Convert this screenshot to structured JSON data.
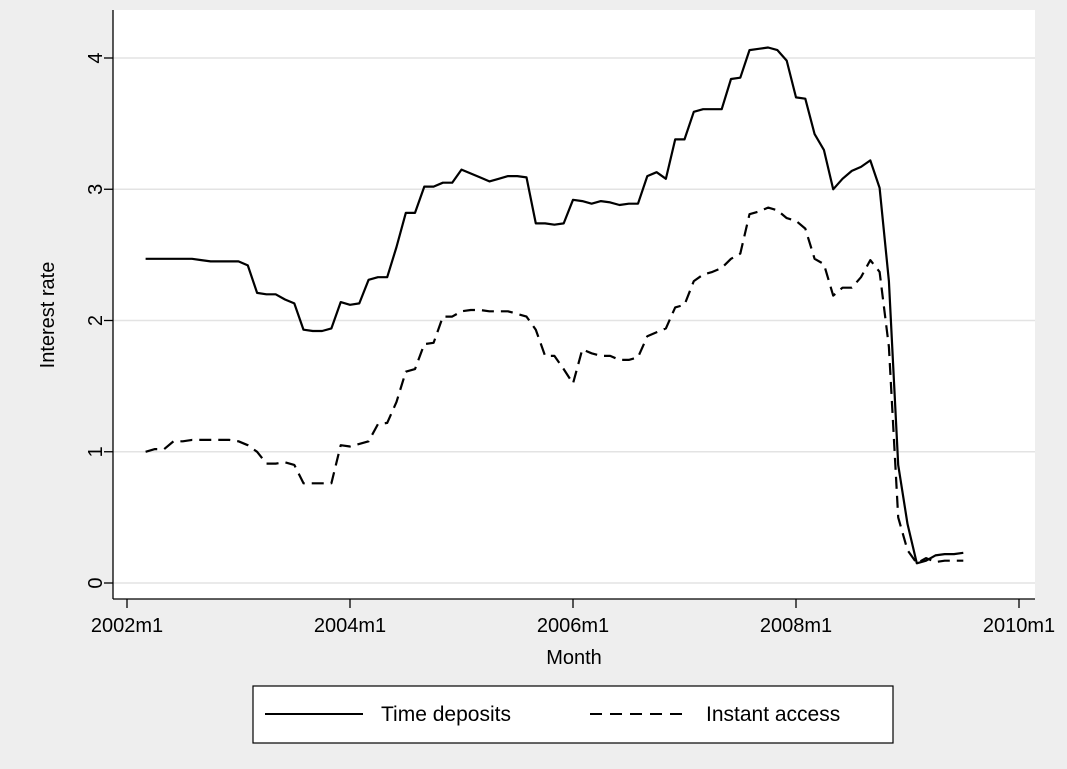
{
  "chart_data": {
    "type": "line",
    "title": "",
    "xlabel": "Month",
    "ylabel": "Interest rate",
    "x_tick_labels": [
      "2002m1",
      "2004m1",
      "2006m1",
      "2008m1",
      "2010m1"
    ],
    "x_tick_values": [
      "2002-01",
      "2004-01",
      "2006-01",
      "2008-01",
      "2010-01"
    ],
    "y_tick_labels": [
      "0",
      "1",
      "2",
      "3",
      "4"
    ],
    "y_tick_values": [
      0,
      1,
      2,
      3,
      4
    ],
    "xlim": [
      "2002-01",
      "2010-01"
    ],
    "ylim": [
      0,
      4
    ],
    "grid": "horizontal",
    "legend_position": "bottom",
    "series": [
      {
        "name": "Time deposits",
        "style": "solid",
        "color": "#000000",
        "points": [
          [
            "2002-03",
            2.47
          ],
          [
            "2002-04",
            2.47
          ],
          [
            "2002-05",
            2.47
          ],
          [
            "2002-06",
            2.47
          ],
          [
            "2002-07",
            2.47
          ],
          [
            "2002-08",
            2.47
          ],
          [
            "2002-09",
            2.46
          ],
          [
            "2002-10",
            2.45
          ],
          [
            "2002-11",
            2.45
          ],
          [
            "2002-12",
            2.45
          ],
          [
            "2003-01",
            2.45
          ],
          [
            "2003-02",
            2.42
          ],
          [
            "2003-03",
            2.21
          ],
          [
            "2003-04",
            2.2
          ],
          [
            "2003-05",
            2.2
          ],
          [
            "2003-06",
            2.16
          ],
          [
            "2003-07",
            2.13
          ],
          [
            "2003-08",
            1.93
          ],
          [
            "2003-09",
            1.92
          ],
          [
            "2003-10",
            1.92
          ],
          [
            "2003-11",
            1.94
          ],
          [
            "2003-12",
            2.14
          ],
          [
            "2004-01",
            2.12
          ],
          [
            "2004-02",
            2.13
          ],
          [
            "2004-03",
            2.31
          ],
          [
            "2004-04",
            2.33
          ],
          [
            "2004-05",
            2.33
          ],
          [
            "2004-06",
            2.56
          ],
          [
            "2004-07",
            2.82
          ],
          [
            "2004-08",
            2.82
          ],
          [
            "2004-09",
            3.02
          ],
          [
            "2004-10",
            3.02
          ],
          [
            "2004-11",
            3.05
          ],
          [
            "2004-12",
            3.05
          ],
          [
            "2005-01",
            3.15
          ],
          [
            "2005-02",
            3.12
          ],
          [
            "2005-03",
            3.09
          ],
          [
            "2005-04",
            3.06
          ],
          [
            "2005-05",
            3.08
          ],
          [
            "2005-06",
            3.1
          ],
          [
            "2005-07",
            3.1
          ],
          [
            "2005-08",
            3.09
          ],
          [
            "2005-09",
            2.74
          ],
          [
            "2005-10",
            2.74
          ],
          [
            "2005-11",
            2.73
          ],
          [
            "2005-12",
            2.74
          ],
          [
            "2006-01",
            2.92
          ],
          [
            "2006-02",
            2.91
          ],
          [
            "2006-03",
            2.89
          ],
          [
            "2006-04",
            2.91
          ],
          [
            "2006-05",
            2.9
          ],
          [
            "2006-06",
            2.88
          ],
          [
            "2006-07",
            2.89
          ],
          [
            "2006-08",
            2.89
          ],
          [
            "2006-09",
            3.1
          ],
          [
            "2006-10",
            3.13
          ],
          [
            "2006-11",
            3.08
          ],
          [
            "2006-12",
            3.38
          ],
          [
            "2007-01",
            3.38
          ],
          [
            "2007-02",
            3.59
          ],
          [
            "2007-03",
            3.61
          ],
          [
            "2007-04",
            3.61
          ],
          [
            "2007-05",
            3.61
          ],
          [
            "2007-06",
            3.84
          ],
          [
            "2007-07",
            3.85
          ],
          [
            "2007-08",
            4.06
          ],
          [
            "2007-09",
            4.07
          ],
          [
            "2007-10",
            4.08
          ],
          [
            "2007-11",
            4.06
          ],
          [
            "2007-12",
            3.98
          ],
          [
            "2008-01",
            3.7
          ],
          [
            "2008-02",
            3.69
          ],
          [
            "2008-03",
            3.42
          ],
          [
            "2008-04",
            3.3
          ],
          [
            "2008-05",
            3.0
          ],
          [
            "2008-06",
            3.08
          ],
          [
            "2008-07",
            3.14
          ],
          [
            "2008-08",
            3.17
          ],
          [
            "2008-09",
            3.22
          ],
          [
            "2008-10",
            3.01
          ],
          [
            "2008-11",
            2.3
          ],
          [
            "2008-12",
            0.9
          ],
          [
            "2009-01",
            0.45
          ],
          [
            "2009-02",
            0.15
          ],
          [
            "2009-03",
            0.17
          ],
          [
            "2009-04",
            0.21
          ],
          [
            "2009-05",
            0.22
          ],
          [
            "2009-06",
            0.22
          ],
          [
            "2009-07",
            0.23
          ]
        ]
      },
      {
        "name": "Instant access",
        "style": "dashed",
        "color": "#000000",
        "points": [
          [
            "2002-03",
            1.0
          ],
          [
            "2002-04",
            1.02
          ],
          [
            "2002-05",
            1.02
          ],
          [
            "2002-06",
            1.08
          ],
          [
            "2002-07",
            1.08
          ],
          [
            "2002-08",
            1.09
          ],
          [
            "2002-09",
            1.09
          ],
          [
            "2002-10",
            1.09
          ],
          [
            "2002-11",
            1.09
          ],
          [
            "2002-12",
            1.09
          ],
          [
            "2003-01",
            1.08
          ],
          [
            "2003-02",
            1.05
          ],
          [
            "2003-03",
            1.0
          ],
          [
            "2003-04",
            0.91
          ],
          [
            "2003-05",
            0.91
          ],
          [
            "2003-06",
            0.92
          ],
          [
            "2003-07",
            0.9
          ],
          [
            "2003-08",
            0.76
          ],
          [
            "2003-09",
            0.76
          ],
          [
            "2003-10",
            0.76
          ],
          [
            "2003-11",
            0.76
          ],
          [
            "2003-12",
            1.05
          ],
          [
            "2004-01",
            1.04
          ],
          [
            "2004-02",
            1.06
          ],
          [
            "2004-03",
            1.08
          ],
          [
            "2004-04",
            1.21
          ],
          [
            "2004-05",
            1.22
          ],
          [
            "2004-06",
            1.38
          ],
          [
            "2004-07",
            1.61
          ],
          [
            "2004-08",
            1.63
          ],
          [
            "2004-09",
            1.82
          ],
          [
            "2004-10",
            1.83
          ],
          [
            "2004-11",
            2.03
          ],
          [
            "2004-12",
            2.03
          ],
          [
            "2005-01",
            2.07
          ],
          [
            "2005-02",
            2.08
          ],
          [
            "2005-03",
            2.08
          ],
          [
            "2005-04",
            2.07
          ],
          [
            "2005-05",
            2.07
          ],
          [
            "2005-06",
            2.07
          ],
          [
            "2005-07",
            2.05
          ],
          [
            "2005-08",
            2.03
          ],
          [
            "2005-09",
            1.93
          ],
          [
            "2005-10",
            1.73
          ],
          [
            "2005-11",
            1.73
          ],
          [
            "2005-12",
            1.63
          ],
          [
            "2006-01",
            1.52
          ],
          [
            "2006-02",
            1.78
          ],
          [
            "2006-03",
            1.75
          ],
          [
            "2006-04",
            1.73
          ],
          [
            "2006-05",
            1.73
          ],
          [
            "2006-06",
            1.7
          ],
          [
            "2006-07",
            1.7
          ],
          [
            "2006-08",
            1.72
          ],
          [
            "2006-09",
            1.88
          ],
          [
            "2006-10",
            1.91
          ],
          [
            "2006-11",
            1.94
          ],
          [
            "2006-12",
            2.1
          ],
          [
            "2007-01",
            2.12
          ],
          [
            "2007-02",
            2.3
          ],
          [
            "2007-03",
            2.35
          ],
          [
            "2007-04",
            2.37
          ],
          [
            "2007-05",
            2.4
          ],
          [
            "2007-06",
            2.47
          ],
          [
            "2007-07",
            2.51
          ],
          [
            "2007-08",
            2.81
          ],
          [
            "2007-09",
            2.83
          ],
          [
            "2007-10",
            2.86
          ],
          [
            "2007-11",
            2.84
          ],
          [
            "2007-12",
            2.78
          ],
          [
            "2008-01",
            2.76
          ],
          [
            "2008-02",
            2.7
          ],
          [
            "2008-03",
            2.47
          ],
          [
            "2008-04",
            2.43
          ],
          [
            "2008-05",
            2.19
          ],
          [
            "2008-06",
            2.25
          ],
          [
            "2008-07",
            2.25
          ],
          [
            "2008-08",
            2.33
          ],
          [
            "2008-09",
            2.46
          ],
          [
            "2008-10",
            2.37
          ],
          [
            "2008-11",
            1.8
          ],
          [
            "2008-12",
            0.5
          ],
          [
            "2009-01",
            0.25
          ],
          [
            "2009-02",
            0.15
          ],
          [
            "2009-03",
            0.19
          ],
          [
            "2009-04",
            0.16
          ],
          [
            "2009-05",
            0.17
          ],
          [
            "2009-06",
            0.17
          ],
          [
            "2009-07",
            0.17
          ]
        ]
      }
    ]
  }
}
